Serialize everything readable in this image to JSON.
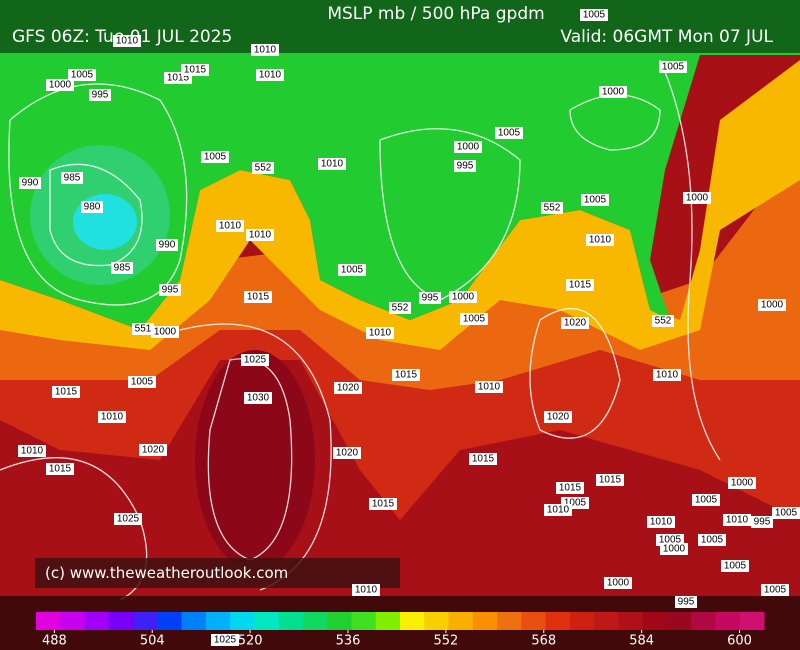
{
  "header": {
    "title": "MSLP mb / 500 hPa gpdm",
    "run": "GFS 06Z: Tue 01 JUL 2025",
    "valid": "Valid: 06GMT Mon 07 JUL"
  },
  "credit": "(c) www.theweatheroutlook.com",
  "colorbar": {
    "lim": [
      485,
      604
    ],
    "ticks": [
      488,
      504,
      520,
      536,
      552,
      568,
      584,
      600
    ],
    "colors": [
      "#e000e0",
      "#c800f0",
      "#a000f8",
      "#7800f8",
      "#4020f8",
      "#0040f8",
      "#0080f8",
      "#00b0f8",
      "#00d8f0",
      "#00e8c0",
      "#00e090",
      "#10d860",
      "#20d030",
      "#40e020",
      "#80f000",
      "#f8f000",
      "#f8d000",
      "#f8b000",
      "#f89000",
      "#f07010",
      "#e85010",
      "#e03010",
      "#d02010",
      "#c01818",
      "#b01018",
      "#a00818",
      "#980820",
      "#b00840",
      "#c80860",
      "#d01070"
    ]
  },
  "isobar_labels": [
    "1005",
    "1010",
    "1010",
    "1005",
    "1000",
    "995",
    "1015",
    "1015",
    "1010",
    "990",
    "985",
    "980",
    "985",
    "990",
    "995",
    "1005",
    "552",
    "1010",
    "1010",
    "1010",
    "1005",
    "1015",
    "1000",
    "1005",
    "1015",
    "1010",
    "1010",
    "1015",
    "1020",
    "1025",
    "1025",
    "1030",
    "1020",
    "1020",
    "1015",
    "1010",
    "1015",
    "552",
    "995",
    "1000",
    "1005",
    "1010",
    "1015",
    "1020",
    "1020",
    "1015",
    "1010",
    "552",
    "1005",
    "1000",
    "995",
    "1005",
    "1000",
    "1005",
    "1000",
    "1000",
    "1010",
    "552",
    "1015",
    "1015",
    "1005",
    "1010",
    "1010",
    "1000",
    "1005",
    "1010",
    "995",
    "1005",
    "1005",
    "1000",
    "1005",
    "1005",
    "1000",
    "995",
    "1005",
    "1010",
    "1025",
    "551"
  ]
}
